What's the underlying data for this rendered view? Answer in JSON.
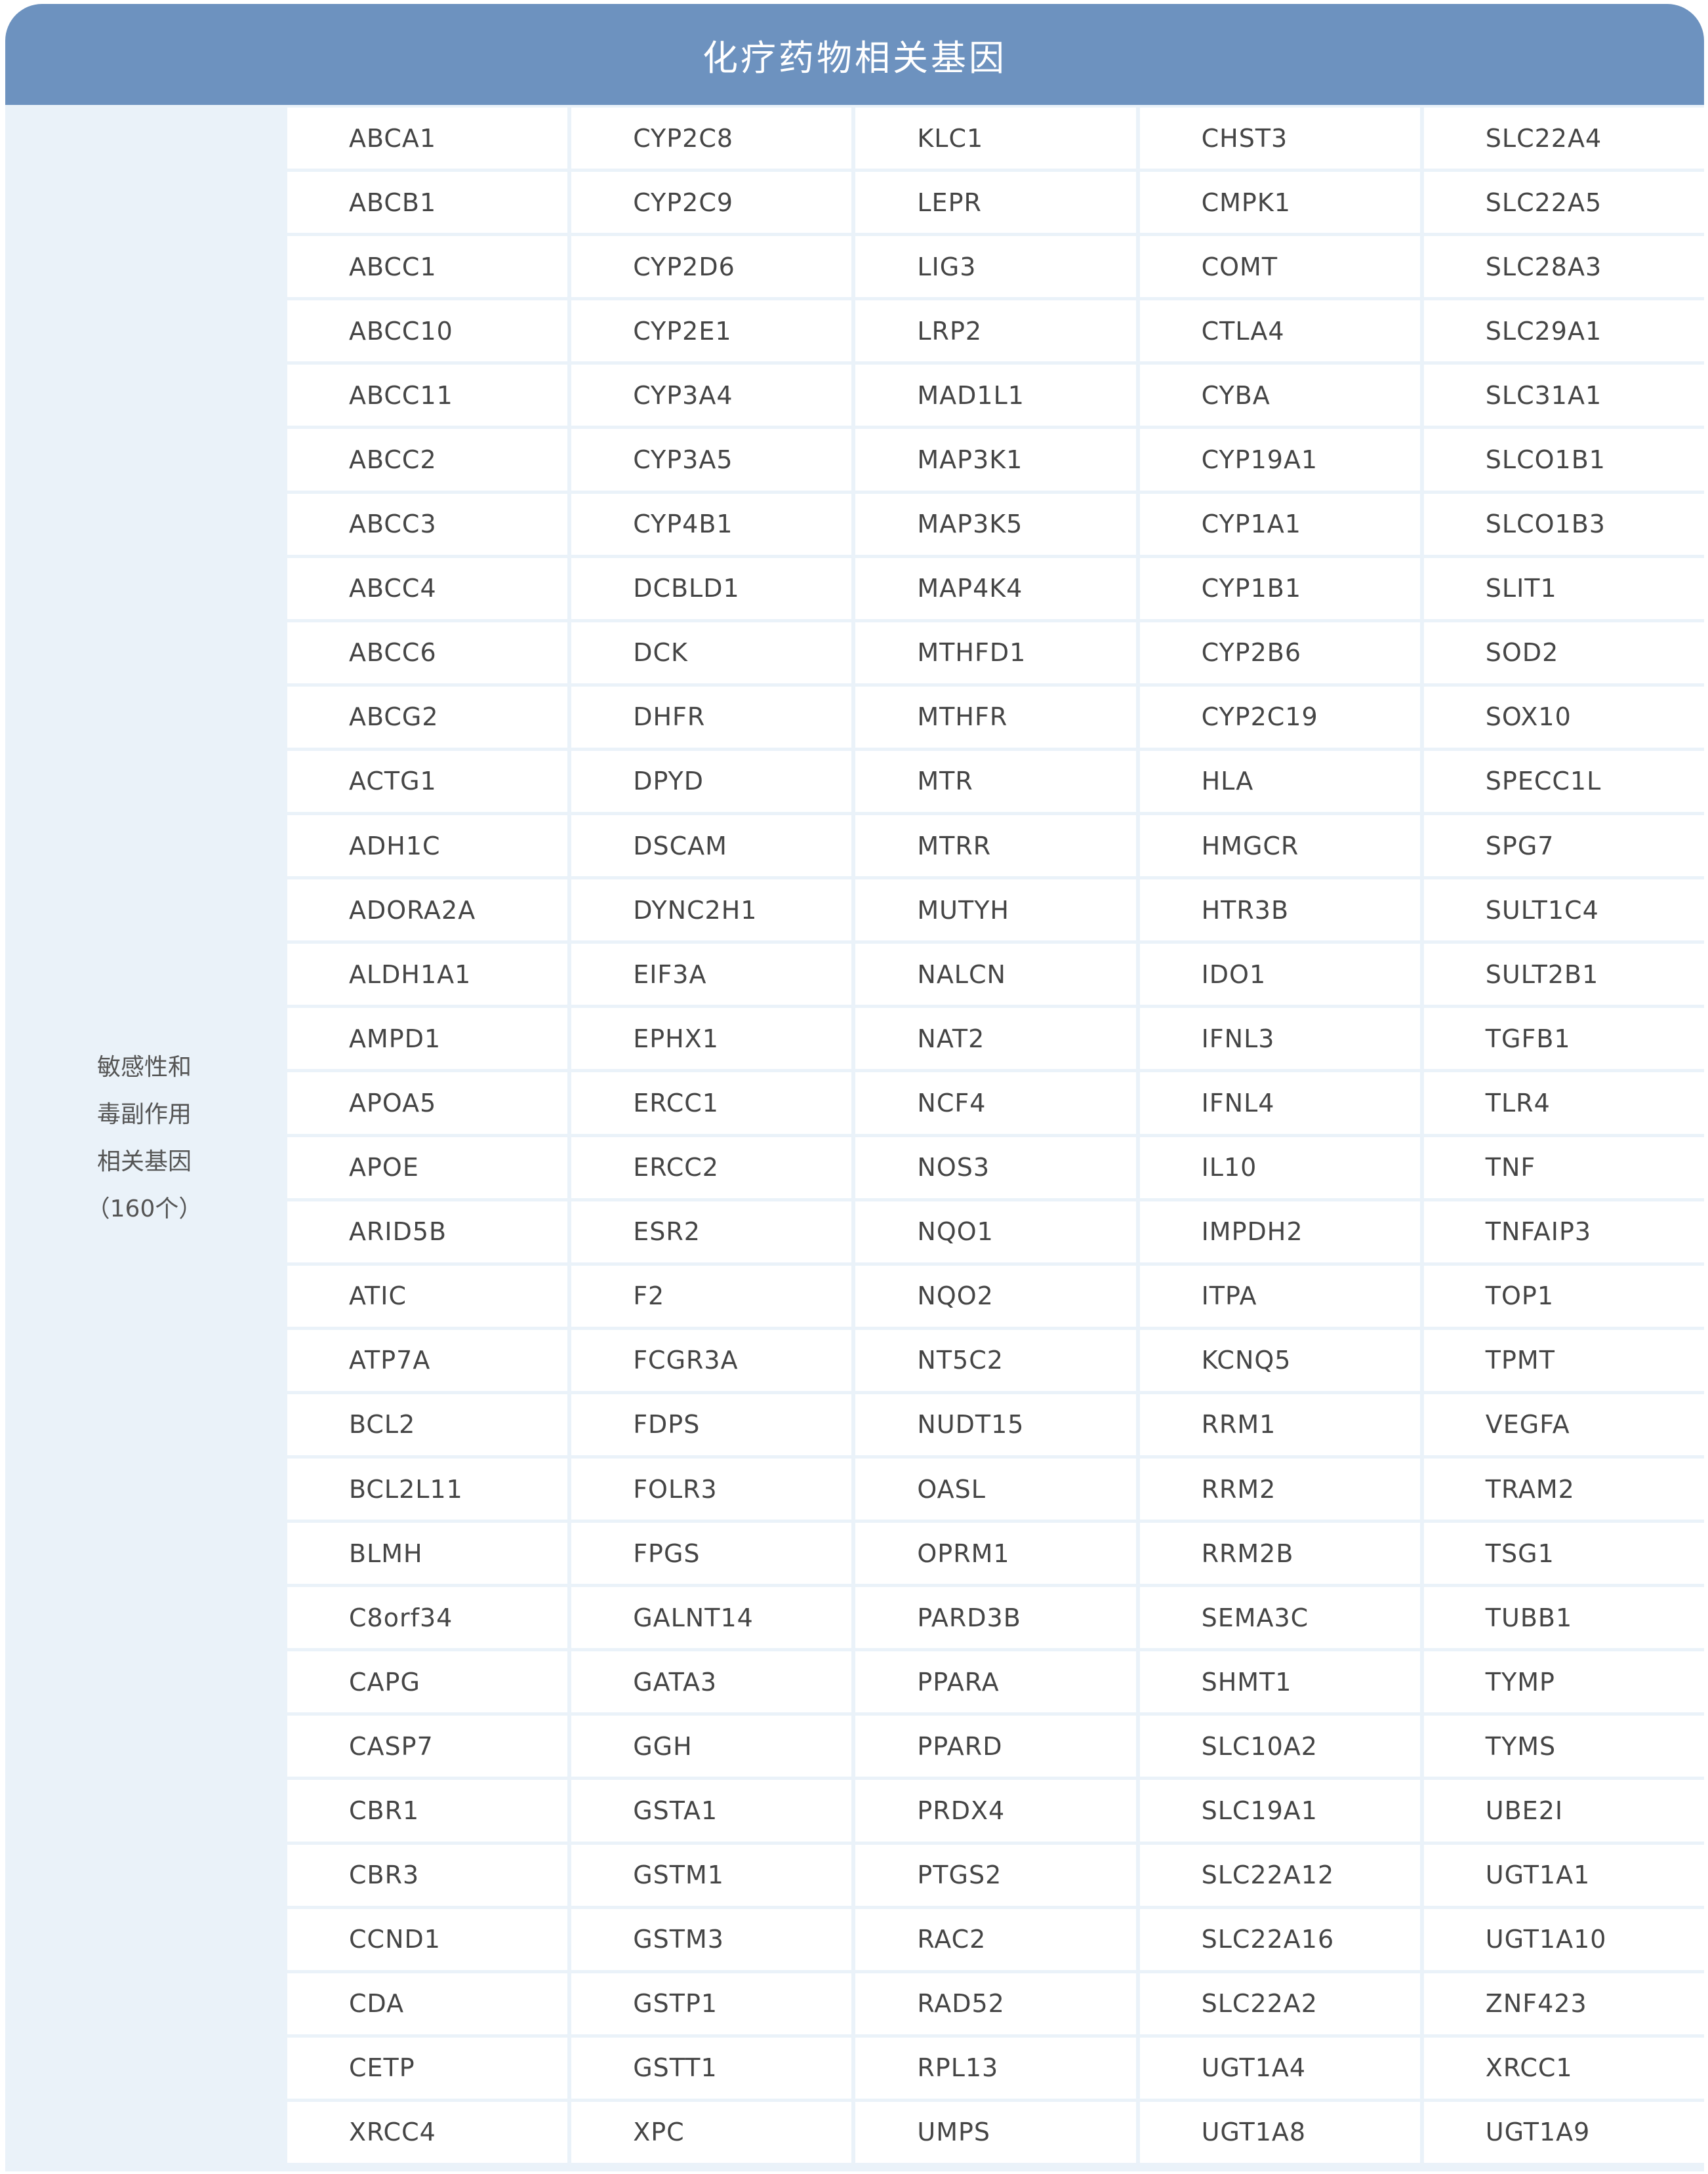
{
  "title": "化疗药物相关基因",
  "category_label_lines": [
    "敏感性和",
    "毒副作用",
    "相关基因",
    "（160个）"
  ],
  "columns": [
    [
      "ABCA1",
      "ABCB1",
      "ABCC1",
      "ABCC10",
      "ABCC11",
      "ABCC2",
      "ABCC3",
      "ABCC4",
      "ABCC6",
      "ABCG2",
      "ACTG1",
      "ADH1C",
      "ADORA2A",
      "ALDH1A1",
      "AMPD1",
      "APOA5",
      "APOE",
      "ARID5B",
      "ATIC",
      "ATP7A",
      "BCL2",
      "BCL2L11",
      "BLMH",
      "C8orf34",
      "CAPG",
      "CASP7",
      "CBR1",
      "CBR3",
      "CCND1",
      "CDA",
      "CETP",
      "XRCC4"
    ],
    [
      "CYP2C8",
      "CYP2C9",
      "CYP2D6",
      "CYP2E1",
      "CYP3A4",
      "CYP3A5",
      "CYP4B1",
      "DCBLD1",
      "DCK",
      "DHFR",
      "DPYD",
      "DSCAM",
      "DYNC2H1",
      "EIF3A",
      "EPHX1",
      "ERCC1",
      "ERCC2",
      "ESR2",
      "F2",
      "FCGR3A",
      "FDPS",
      "FOLR3",
      "FPGS",
      "GALNT14",
      "GATA3",
      "GGH",
      "GSTA1",
      "GSTM1",
      "GSTM3",
      "GSTP1",
      "GSTT1",
      "XPC"
    ],
    [
      "KLC1",
      "LEPR",
      "LIG3",
      "LRP2",
      "MAD1L1",
      "MAP3K1",
      "MAP3K5",
      "MAP4K4",
      "MTHFD1",
      "MTHFR",
      "MTR",
      "MTRR",
      "MUTYH",
      "NALCN",
      "NAT2",
      "NCF4",
      "NOS3",
      "NQO1",
      "NQO2",
      "NT5C2",
      "NUDT15",
      "OASL",
      "OPRM1",
      "PARD3B",
      "PPARA",
      "PPARD",
      "PRDX4",
      "PTGS2",
      "RAC2",
      "RAD52",
      "RPL13",
      "UMPS"
    ],
    [
      "CHST3",
      "CMPK1",
      "COMT",
      "CTLA4",
      "CYBA",
      "CYP19A1",
      "CYP1A1",
      "CYP1B1",
      "CYP2B6",
      "CYP2C19",
      "HLA",
      "HMGCR",
      "HTR3B",
      "IDO1",
      "IFNL3",
      "IFNL4",
      "IL10",
      "IMPDH2",
      "ITPA",
      "KCNQ5",
      "RRM1",
      "RRM2",
      "RRM2B",
      "SEMA3C",
      "SHMT1",
      "SLC10A2",
      "SLC19A1",
      "SLC22A12",
      "SLC22A16",
      "SLC22A2",
      "UGT1A4",
      "UGT1A8"
    ],
    [
      "SLC22A4",
      "SLC22A5",
      "SLC28A3",
      "SLC29A1",
      "SLC31A1",
      "SLCO1B1",
      "SLCO1B3",
      "SLIT1",
      "SOD2",
      "SOX10",
      "SPECC1L",
      "SPG7",
      "SULT1C4",
      "SULT2B1",
      "TGFB1",
      "TLR4",
      "TNF",
      "TNFAIP3",
      "TOP1",
      "TPMT",
      "VEGFA",
      "TRAM2",
      "TSG1",
      "TUBB1",
      "TYMP",
      "TYMS",
      "UBE2I",
      "UGT1A1",
      "UGT1A10",
      "ZNF423",
      "XRCC1",
      "UGT1A9"
    ]
  ]
}
